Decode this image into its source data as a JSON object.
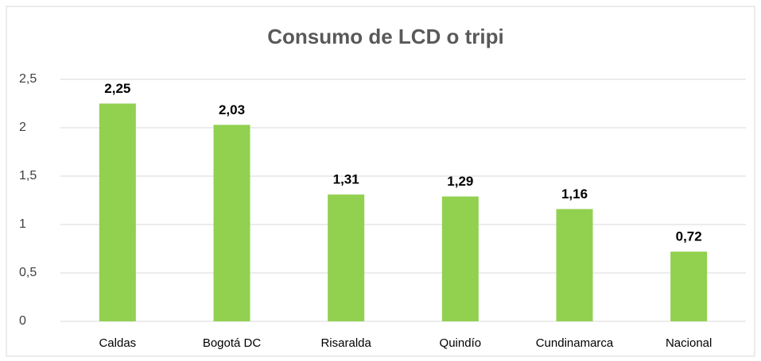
{
  "chart_data": {
    "type": "bar",
    "title": "Consumo de LCD o tripi",
    "categories": [
      "Caldas",
      "Bogotá DC",
      "Risaralda",
      "Quindío",
      "Cundinamarca",
      "Nacional"
    ],
    "values": [
      2.25,
      2.03,
      1.31,
      1.29,
      1.16,
      0.72
    ],
    "value_labels": [
      "2,25",
      "2,03",
      "1,31",
      "1,29",
      "1,16",
      "0,72"
    ],
    "color": "#92d050",
    "ylim": [
      0,
      2.5
    ],
    "yticks": [
      0,
      {
        "value": 0.5,
        "label": "0,5"
      },
      1,
      {
        "value": 1.5,
        "label": "1,5"
      },
      2,
      {
        "value": 2.5,
        "label": "2,5"
      }
    ],
    "grid": true
  }
}
